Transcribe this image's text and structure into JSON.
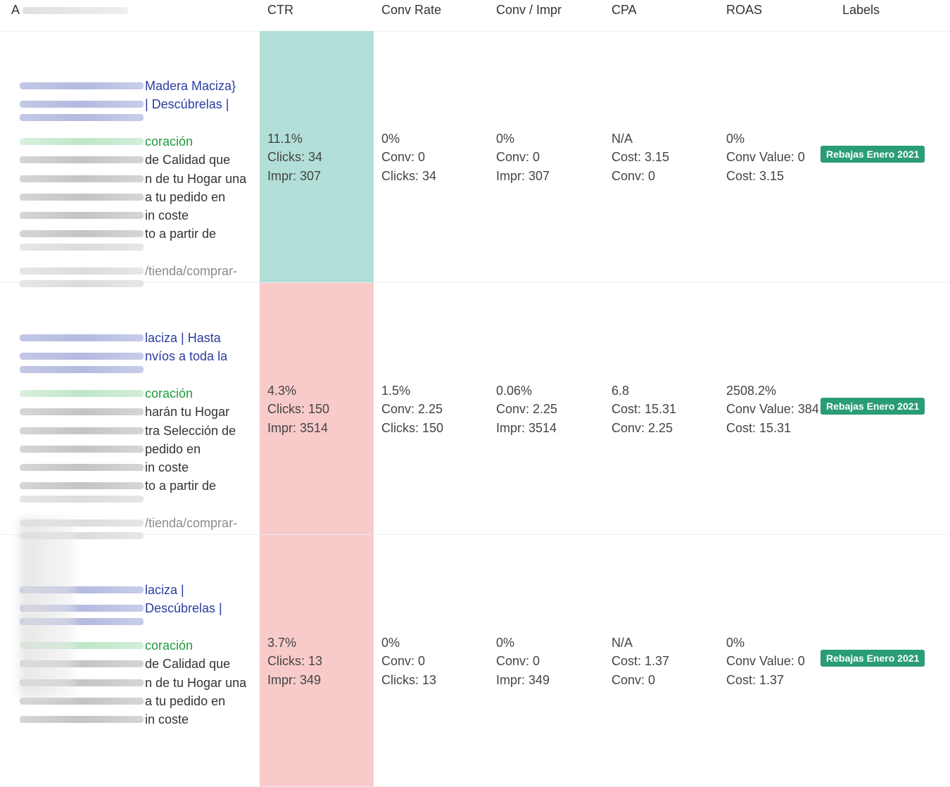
{
  "header": {
    "ad": "A",
    "ctr": "CTR",
    "conv_rate": "Conv Rate",
    "conv_impr": "Conv / Impr",
    "cpa": "CPA",
    "roas": "ROAS",
    "labels": "Labels"
  },
  "rows": [
    {
      "ad_lines": [
        {
          "text": "Madera Maciza}",
          "style": "blue"
        },
        {
          "text": "| Descúbrelas |",
          "style": "blue"
        },
        {
          "text": "",
          "style": "blue"
        },
        {
          "text": "coración",
          "style": "green"
        },
        {
          "text": "de Calidad que",
          "style": "dark"
        },
        {
          "text": "n de tu Hogar una",
          "style": "dark"
        },
        {
          "text": "a tu pedido en",
          "style": "dark"
        },
        {
          "text": "in coste",
          "style": "dark"
        },
        {
          "text": "to a partir de",
          "style": "dark"
        },
        {
          "text": "",
          "style": "light"
        },
        {
          "text": "/tienda/comprar-",
          "style": "gray"
        },
        {
          "text": "",
          "style": "light"
        }
      ],
      "ctr": {
        "pct": "11.1%",
        "clicks": "Clicks: 34",
        "impr": "Impr: 307",
        "status": "good"
      },
      "conv_rate": {
        "pct": "0%",
        "a": "Conv: 0",
        "b": "Clicks: 34"
      },
      "conv_impr": {
        "pct": "0%",
        "a": "Conv: 0",
        "b": "Impr: 307"
      },
      "cpa": {
        "pct": "N/A",
        "a": "Cost: 3.15",
        "b": "Conv: 0"
      },
      "roas": {
        "pct": "0%",
        "a": "Conv Value: 0",
        "b": "Cost: 3.15"
      },
      "label": "Rebajas Enero 2021"
    },
    {
      "ad_lines": [
        {
          "text": "laciza | Hasta",
          "style": "blue"
        },
        {
          "text": "nvíos a toda la",
          "style": "blue"
        },
        {
          "text": "",
          "style": "blue"
        },
        {
          "text": "coración",
          "style": "green"
        },
        {
          "text": " harán tu Hogar",
          "style": "dark"
        },
        {
          "text": "tra Selección de",
          "style": "dark"
        },
        {
          "text": "pedido en",
          "style": "dark"
        },
        {
          "text": "in coste",
          "style": "dark"
        },
        {
          "text": "to a partir de",
          "style": "dark"
        },
        {
          "text": "",
          "style": "light"
        },
        {
          "text": "/tienda/comprar-",
          "style": "gray"
        },
        {
          "text": "",
          "style": "light"
        }
      ],
      "ctr": {
        "pct": "4.3%",
        "clicks": "Clicks: 150",
        "impr": "Impr: 3514",
        "status": "bad"
      },
      "conv_rate": {
        "pct": "1.5%",
        "a": "Conv: 2.25",
        "b": "Clicks: 150"
      },
      "conv_impr": {
        "pct": "0.06%",
        "a": "Conv: 2.25",
        "b": "Impr: 3514"
      },
      "cpa": {
        "pct": "6.8",
        "a": "Cost: 15.31",
        "b": "Conv: 2.25"
      },
      "roas": {
        "pct": "2508.2%",
        "a": "Conv Value: 384",
        "b": "Cost: 15.31"
      },
      "label": "Rebajas Enero 2021"
    },
    {
      "ad_lines": [
        {
          "text": "laciza |",
          "style": "blue"
        },
        {
          "text": "Descúbrelas |",
          "style": "blue"
        },
        {
          "text": "",
          "style": "blue"
        },
        {
          "text": "coración",
          "style": "green"
        },
        {
          "text": "de Calidad que",
          "style": "dark"
        },
        {
          "text": "n de tu Hogar una",
          "style": "dark"
        },
        {
          "text": "a tu pedido en",
          "style": "dark"
        },
        {
          "text": "in coste",
          "style": "dark"
        }
      ],
      "ctr": {
        "pct": "3.7%",
        "clicks": "Clicks: 13",
        "impr": "Impr: 349",
        "status": "bad"
      },
      "conv_rate": {
        "pct": "0%",
        "a": "Conv: 0",
        "b": "Clicks: 13"
      },
      "conv_impr": {
        "pct": "0%",
        "a": "Conv: 0",
        "b": "Impr: 349"
      },
      "cpa": {
        "pct": "N/A",
        "a": "Cost: 1.37",
        "b": "Conv: 0"
      },
      "roas": {
        "pct": "0%",
        "a": "Conv Value: 0",
        "b": "Cost: 1.37"
      },
      "label": "Rebajas Enero 2021"
    }
  ],
  "colors": {
    "ctr_good": "#b2dfd8",
    "ctr_bad": "#f8caca",
    "label_badge": "#2a9d74",
    "headline_text": "#2a3d9e",
    "display_url": "#1f9a3d"
  }
}
